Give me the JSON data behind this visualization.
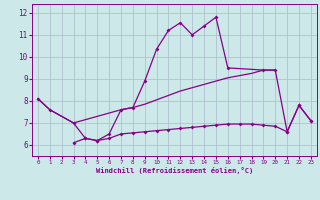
{
  "bg_color": "#cce8e8",
  "line_color": "#880088",
  "grid_color": "#aabbcc",
  "xlabel": "Windchill (Refroidissement éolien,°C)",
  "xlim": [
    -0.5,
    23.5
  ],
  "ylim": [
    5.5,
    12.4
  ],
  "yticks": [
    6,
    7,
    8,
    9,
    10,
    11,
    12
  ],
  "xticks": [
    0,
    1,
    2,
    3,
    4,
    5,
    6,
    7,
    8,
    9,
    10,
    11,
    12,
    13,
    14,
    15,
    16,
    17,
    18,
    19,
    20,
    21,
    22,
    23
  ],
  "curve1_x": [
    0,
    1,
    3,
    4,
    5,
    6,
    7,
    8,
    9,
    10,
    11,
    12,
    13,
    14,
    15,
    16,
    19,
    20,
    21,
    22,
    23
  ],
  "curve1_y": [
    8.1,
    7.6,
    7.0,
    6.3,
    6.2,
    6.5,
    7.6,
    7.7,
    8.9,
    10.35,
    11.2,
    11.55,
    11.0,
    11.4,
    11.8,
    9.5,
    9.4,
    9.4,
    6.6,
    7.8,
    7.1
  ],
  "curve2_x": [
    0,
    1,
    3,
    7,
    8,
    9,
    10,
    11,
    12,
    13,
    14,
    15,
    16,
    17,
    18,
    19,
    20
  ],
  "curve2_y": [
    8.1,
    7.6,
    7.0,
    7.6,
    7.7,
    7.85,
    8.05,
    8.25,
    8.45,
    8.6,
    8.75,
    8.9,
    9.05,
    9.15,
    9.25,
    9.4,
    9.4
  ],
  "curve3_x": [
    3,
    4,
    5,
    6,
    7,
    8,
    9,
    10,
    11,
    12,
    13,
    14,
    15,
    16,
    17,
    18,
    19,
    20,
    21,
    22,
    23
  ],
  "curve3_y": [
    6.1,
    6.3,
    6.2,
    6.3,
    6.5,
    6.55,
    6.6,
    6.65,
    6.7,
    6.75,
    6.8,
    6.85,
    6.9,
    6.95,
    6.95,
    6.95,
    6.9,
    6.85,
    6.6,
    7.8,
    7.1
  ]
}
